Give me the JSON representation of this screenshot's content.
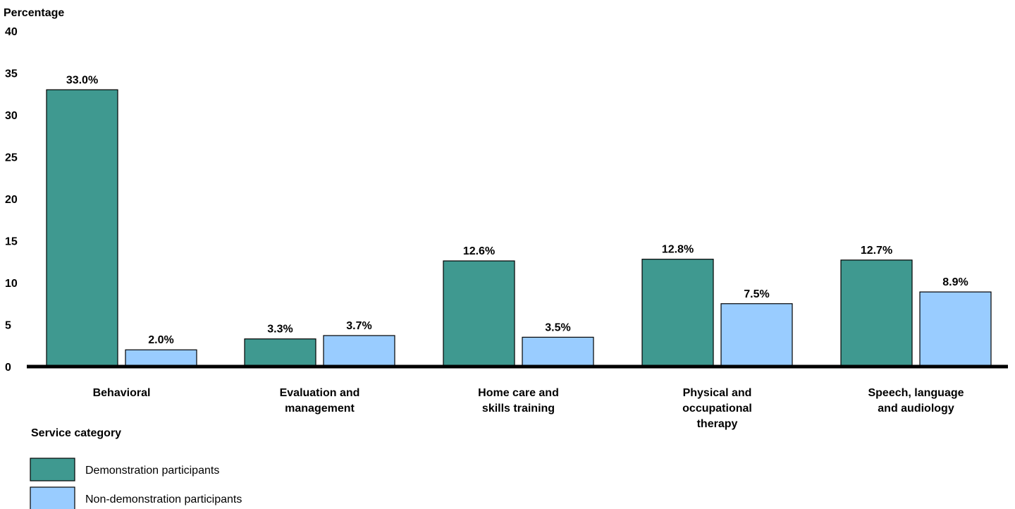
{
  "chart_data": {
    "type": "bar",
    "ylabel": "Percentage",
    "xlabel": "Service category",
    "ylim": [
      0,
      40
    ],
    "yticks": [
      "0",
      "5",
      "10",
      "15",
      "20",
      "25",
      "30",
      "35",
      "40"
    ],
    "grid": false,
    "legend_position": "bottom-left",
    "categories": [
      [
        "Behavioral"
      ],
      [
        "Evaluation and",
        "management"
      ],
      [
        "Home care and",
        "skills training"
      ],
      [
        "Physical and",
        "occupational",
        "therapy"
      ],
      [
        "Speech, language",
        "and audiology"
      ]
    ],
    "series": [
      {
        "name": "Demonstration participants",
        "color": "#3f9990",
        "values": [
          33.0,
          3.3,
          12.6,
          12.8,
          12.7
        ],
        "labels": [
          "33.0%",
          "3.3%",
          "12.6%",
          "12.8%",
          "12.7%"
        ]
      },
      {
        "name": "Non-demonstration participants",
        "color": "#99ccff",
        "values": [
          2.0,
          3.7,
          3.5,
          7.5,
          8.9
        ],
        "labels": [
          "2.0%",
          "3.7%",
          "3.5%",
          "7.5%",
          "8.9%"
        ]
      }
    ]
  }
}
